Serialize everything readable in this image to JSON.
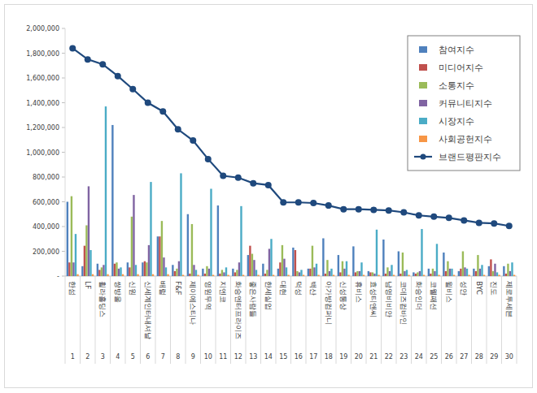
{
  "chart_data": {
    "type": "bar",
    "categories": [
      "한섬",
      "LF",
      "휠라홀딩스",
      "쌍방울",
      "신원",
      "신세계인터내셔날",
      "배럴",
      "F&F",
      "제이에스티나",
      "영원무역",
      "지엔코",
      "화승엔터프라이즈",
      "좋은사람들",
      "한세실업",
      "대현",
      "덕성",
      "백산",
      "아가방컴퍼니",
      "신성통상",
      "휴비스",
      "효성티앤씨",
      "남영비비안",
      "코데즈컴바인",
      "화승인더",
      "코웰패션",
      "윌비스",
      "성안",
      "BYC",
      "진도",
      "제로투세븐"
    ],
    "ranks": [
      1,
      2,
      3,
      4,
      5,
      6,
      7,
      8,
      9,
      10,
      11,
      12,
      13,
      14,
      15,
      16,
      17,
      18,
      19,
      20,
      21,
      22,
      23,
      24,
      25,
      26,
      27,
      28,
      29,
      30
    ],
    "series": [
      {
        "name": "참여지수",
        "color": "#4f81bd",
        "values": [
          600000,
          80000,
          100000,
          1220000,
          110000,
          110000,
          320000,
          90000,
          500000,
          60000,
          570000,
          60000,
          170000,
          100000,
          60000,
          230000,
          60000,
          305000,
          170000,
          240000,
          40000,
          295000,
          200000,
          30000,
          60000,
          190000,
          40000,
          60000,
          80000,
          80000
        ]
      },
      {
        "name": "미디어지수",
        "color": "#c0504d",
        "values": [
          110000,
          245000,
          50000,
          100000,
          70000,
          120000,
          320000,
          40000,
          20000,
          20000,
          20000,
          30000,
          245000,
          20000,
          110000,
          210000,
          60000,
          20000,
          30000,
          30000,
          30000,
          20000,
          20000,
          20000,
          20000,
          40000,
          60000,
          40000,
          135000,
          20000
        ]
      },
      {
        "name": "소통지수",
        "color": "#9bbb59",
        "values": [
          645000,
          410000,
          70000,
          110000,
          480000,
          110000,
          445000,
          60000,
          420000,
          80000,
          50000,
          50000,
          180000,
          50000,
          250000,
          40000,
          245000,
          130000,
          120000,
          40000,
          30000,
          70000,
          190000,
          30000,
          60000,
          120000,
          200000,
          170000,
          40000,
          100000
        ]
      },
      {
        "name": "커뮤니티지수",
        "color": "#8064a2",
        "values": [
          110000,
          725000,
          90000,
          60000,
          655000,
          250000,
          150000,
          120000,
          90000,
          60000,
          30000,
          110000,
          130000,
          220000,
          140000,
          30000,
          70000,
          40000,
          60000,
          40000,
          20000,
          40000,
          40000,
          40000,
          40000,
          60000,
          70000,
          60000,
          100000,
          40000
        ]
      },
      {
        "name": "시장지수",
        "color": "#4bacc6",
        "values": [
          340000,
          210000,
          1370000,
          70000,
          90000,
          760000,
          70000,
          830000,
          50000,
          705000,
          70000,
          565000,
          50000,
          300000,
          70000,
          50000,
          100000,
          60000,
          120000,
          110000,
          375000,
          90000,
          50000,
          380000,
          260000,
          60000,
          60000,
          90000,
          30000,
          110000
        ]
      },
      {
        "name": "사회공헌지수",
        "color": "#f79646",
        "values": [
          15000,
          15000,
          15000,
          15000,
          15000,
          15000,
          15000,
          10000,
          10000,
          10000,
          10000,
          10000,
          10000,
          10000,
          10000,
          10000,
          10000,
          10000,
          10000,
          10000,
          10000,
          10000,
          10000,
          10000,
          10000,
          10000,
          10000,
          10000,
          10000,
          10000
        ]
      },
      {
        "name": "브랜드평판지수",
        "color": "#1f497d",
        "type": "line",
        "marker": "circle",
        "values": [
          1840000,
          1750000,
          1710000,
          1615000,
          1510000,
          1400000,
          1330000,
          1185000,
          1095000,
          945000,
          810000,
          795000,
          750000,
          735000,
          595000,
          595000,
          590000,
          570000,
          540000,
          540000,
          535000,
          530000,
          515000,
          490000,
          480000,
          470000,
          450000,
          430000,
          425000,
          405000
        ]
      }
    ],
    "ylim": [
      0,
      2000000
    ],
    "yticks": [
      {
        "value": 0,
        "label": "-"
      },
      {
        "value": 200000,
        "label": "200,000"
      },
      {
        "value": 400000,
        "label": "400,000"
      },
      {
        "value": 600000,
        "label": "600,000"
      },
      {
        "value": 800000,
        "label": "800,000"
      },
      {
        "value": 1000000,
        "label": "1,000,000"
      },
      {
        "value": 1200000,
        "label": "1,200,000"
      },
      {
        "value": 1400000,
        "label": "1,400,000"
      },
      {
        "value": 1600000,
        "label": "1,600,000"
      },
      {
        "value": 1800000,
        "label": "1,800,000"
      },
      {
        "value": 2000000,
        "label": "2,000,000"
      }
    ],
    "grid": false,
    "legend": "top-right"
  }
}
